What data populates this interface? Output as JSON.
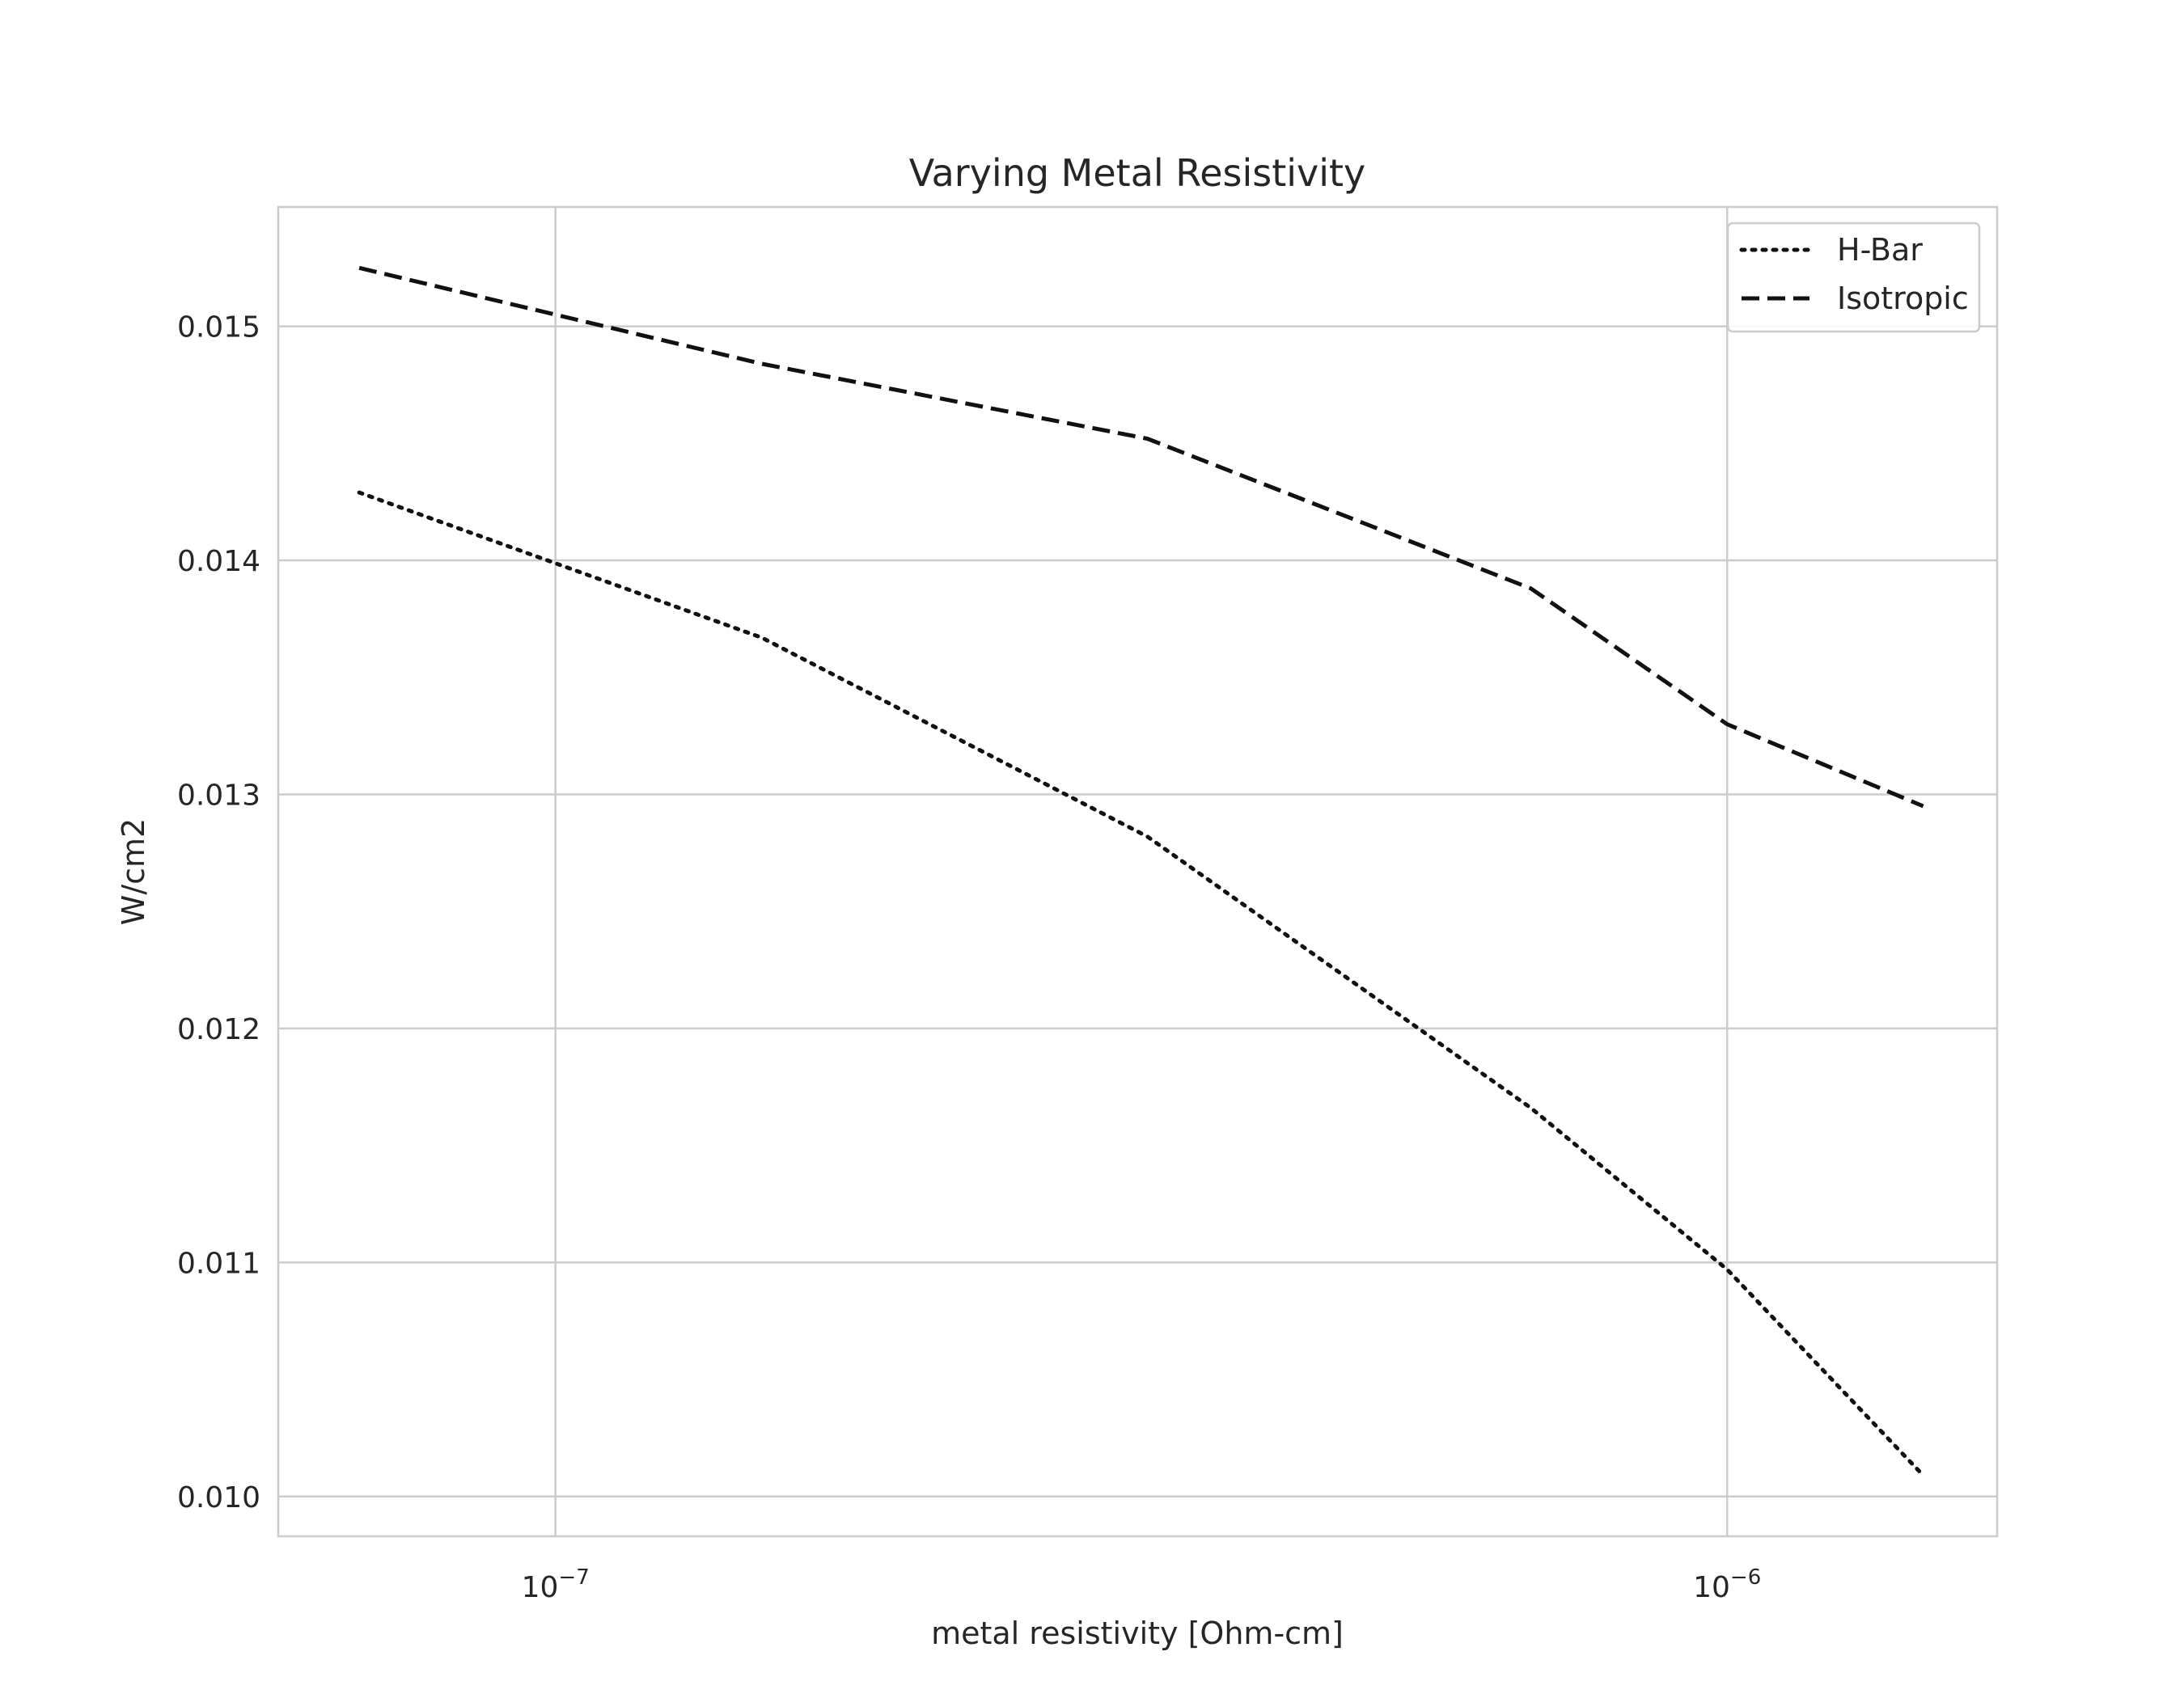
{
  "chart_data": {
    "type": "line",
    "title": "Varying Metal Resistivity",
    "xlabel": "metal resistivity [Ohm-cm]",
    "ylabel": "W/cm2",
    "xscale": "log",
    "xlim": [
      5.8e-08,
      1.7e-06
    ],
    "ylim": [
      0.00983,
      0.01551
    ],
    "grid": true,
    "legend_position": "top-right",
    "x_ticks": [
      {
        "value": 1e-07,
        "base": "10",
        "exponent": "−7"
      },
      {
        "value": 1e-06,
        "base": "10",
        "exponent": "−6"
      }
    ],
    "y_ticks": [
      {
        "value": 0.01,
        "label": "0.010"
      },
      {
        "value": 0.011,
        "label": "0.011"
      },
      {
        "value": 0.012,
        "label": "0.012"
      },
      {
        "value": 0.013,
        "label": "0.013"
      },
      {
        "value": 0.014,
        "label": "0.014"
      },
      {
        "value": 0.015,
        "label": "0.015"
      }
    ],
    "x": [
      6.8e-08,
      1.5e-07,
      3.2e-07,
      6.8e-07,
      1e-06,
      1.47e-06
    ],
    "series": [
      {
        "name": "H-Bar",
        "style": "dotted",
        "color": "#111111",
        "values": [
          0.01429,
          0.01367,
          0.01282,
          0.01166,
          0.01097,
          0.01009
        ]
      },
      {
        "name": "Isotropic",
        "style": "dashed",
        "color": "#111111",
        "values": [
          0.01525,
          0.01484,
          0.01452,
          0.01388,
          0.0133,
          0.01295
        ]
      }
    ]
  }
}
